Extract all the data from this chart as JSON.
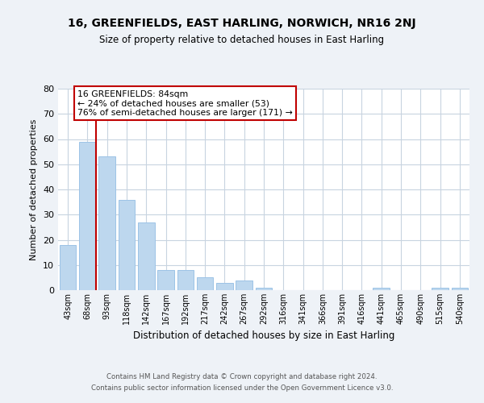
{
  "title": "16, GREENFIELDS, EAST HARLING, NORWICH, NR16 2NJ",
  "subtitle": "Size of property relative to detached houses in East Harling",
  "xlabel": "Distribution of detached houses by size in East Harling",
  "ylabel": "Number of detached properties",
  "bar_labels": [
    "43sqm",
    "68sqm",
    "93sqm",
    "118sqm",
    "142sqm",
    "167sqm",
    "192sqm",
    "217sqm",
    "242sqm",
    "267sqm",
    "292sqm",
    "316sqm",
    "341sqm",
    "366sqm",
    "391sqm",
    "416sqm",
    "441sqm",
    "465sqm",
    "490sqm",
    "515sqm",
    "540sqm"
  ],
  "bar_values": [
    18,
    59,
    53,
    36,
    27,
    8,
    8,
    5,
    3,
    4,
    1,
    0,
    0,
    0,
    0,
    0,
    1,
    0,
    0,
    1,
    1
  ],
  "bar_color": "#bdd7ee",
  "bar_edge_color": "#9dc3e6",
  "vline_color": "#c00000",
  "ylim": [
    0,
    80
  ],
  "yticks": [
    0,
    10,
    20,
    30,
    40,
    50,
    60,
    70,
    80
  ],
  "annotation_title": "16 GREENFIELDS: 84sqm",
  "annotation_line1": "← 24% of detached houses are smaller (53)",
  "annotation_line2": "76% of semi-detached houses are larger (171) →",
  "annotation_box_color": "#ffffff",
  "annotation_box_edge": "#c00000",
  "footer_line1": "Contains HM Land Registry data © Crown copyright and database right 2024.",
  "footer_line2": "Contains public sector information licensed under the Open Government Licence v3.0.",
  "background_color": "#eef2f7",
  "plot_bg_color": "#ffffff",
  "grid_color": "#c8d4e0"
}
